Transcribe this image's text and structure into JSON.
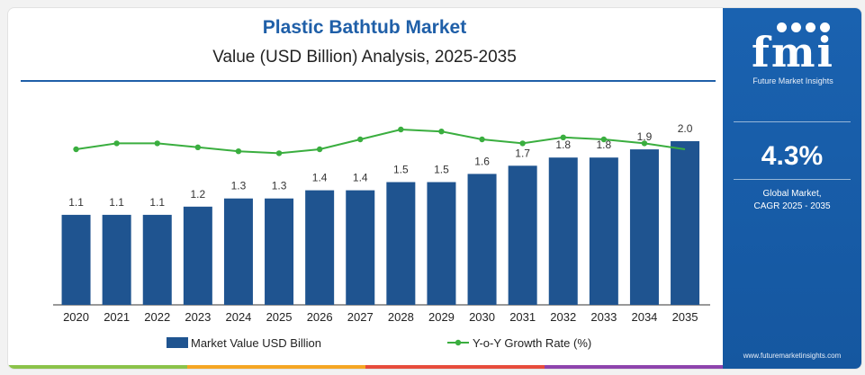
{
  "header": {
    "title": "Plastic Bathtub Market",
    "subtitle": "Value (USD Billion) Analysis, 2025-2035"
  },
  "sidebar": {
    "logo_text": "fmi",
    "logo_caption": "Future Market Insights",
    "cagr_value": "4.3%",
    "cagr_label_line1": "Global Market,",
    "cagr_label_line2": "CAGR 2025 - 2035",
    "url": "www.futuremarketinsights.com"
  },
  "colors": {
    "bar": "#1f5490",
    "line": "#3aae3f",
    "title": "#1f5fa8",
    "sidebar": "#1a62b0",
    "strip": [
      "#8bc34a",
      "#f5a623",
      "#e74c3c",
      "#8e44ad"
    ]
  },
  "chart_data": {
    "type": "bar",
    "categories": [
      "2020",
      "2021",
      "2022",
      "2023",
      "2024",
      "2025",
      "2026",
      "2027",
      "2028",
      "2029",
      "2030",
      "2031",
      "2032",
      "2033",
      "2034",
      "2035"
    ],
    "series": [
      {
        "name": "Market Value USD Billion",
        "type": "bar",
        "values": [
          1.1,
          1.1,
          1.1,
          1.2,
          1.3,
          1.3,
          1.4,
          1.4,
          1.5,
          1.5,
          1.6,
          1.7,
          1.8,
          1.8,
          1.9,
          2.0
        ],
        "labels": [
          "1.1",
          "1.1",
          "1.1",
          "1.2",
          "1.3",
          "1.3",
          "1.4",
          "1.4",
          "1.5",
          "1.5",
          "1.6",
          "1.7",
          "1.8",
          "1.8",
          "1.9",
          "2.0"
        ]
      },
      {
        "name": "Y-o-Y Growth Rate (%)",
        "type": "line",
        "values": [
          3.9,
          4.2,
          4.2,
          4.0,
          3.8,
          3.7,
          3.9,
          4.4,
          4.9,
          4.8,
          4.4,
          4.2,
          4.5,
          4.4,
          4.2,
          3.9
        ]
      }
    ],
    "legend_position": "bottom",
    "grid": false
  }
}
